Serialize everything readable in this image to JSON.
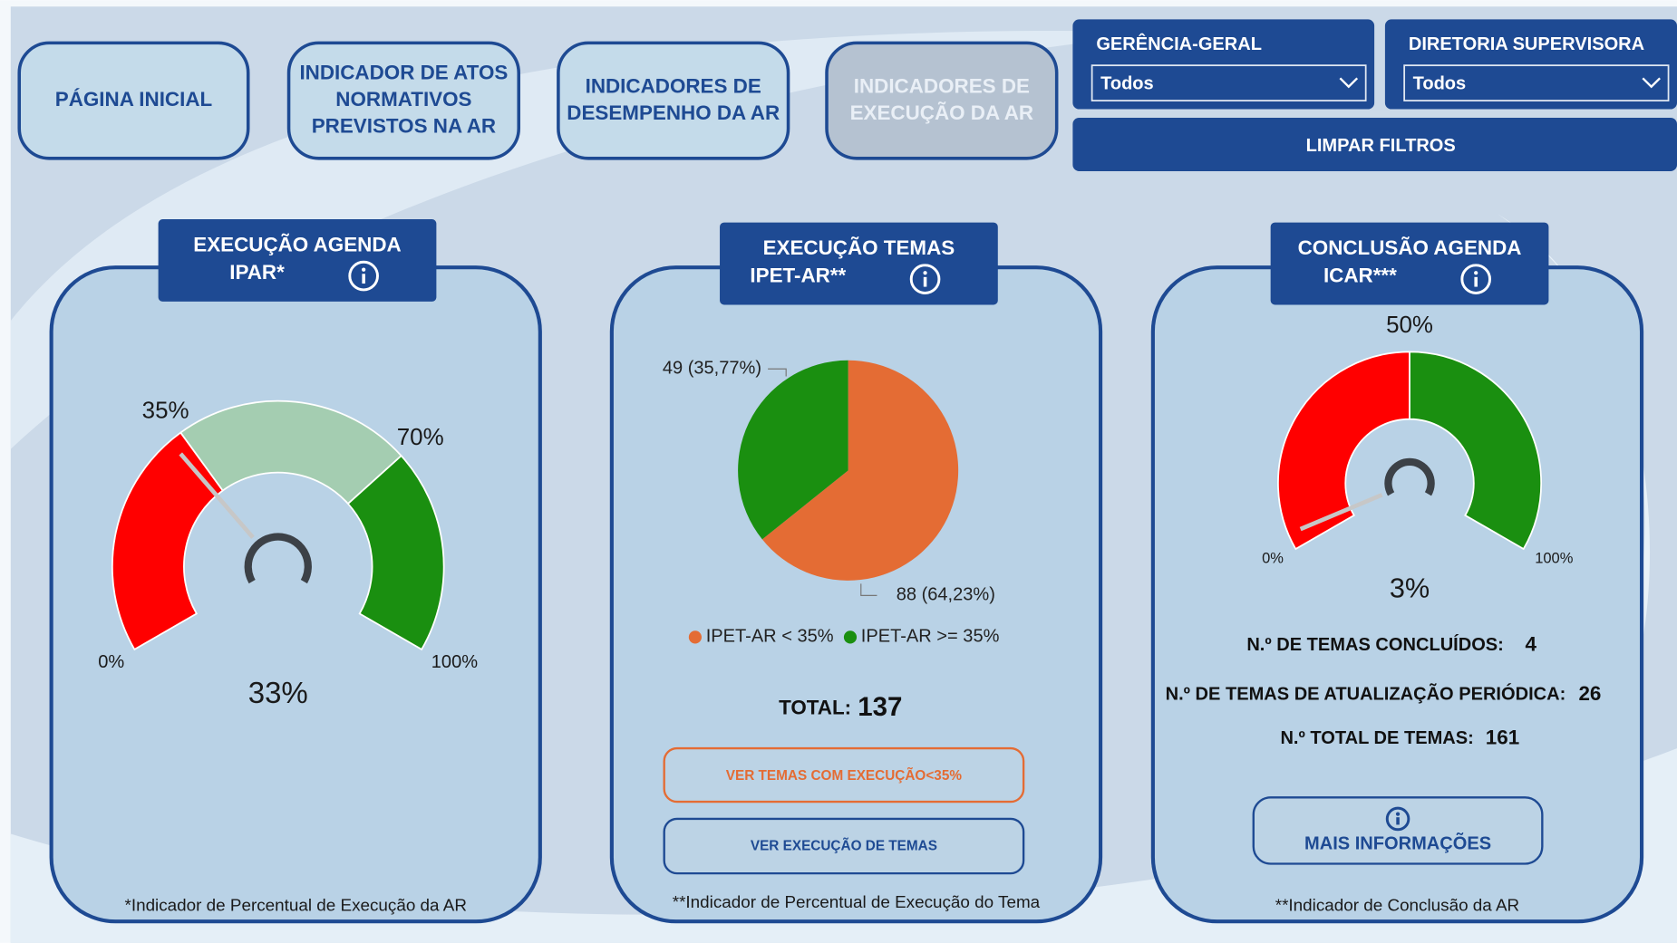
{
  "nav": [
    {
      "lines": [
        "PÁGINA INICIAL"
      ]
    },
    {
      "lines": [
        "INDICADOR DE ATOS",
        "NORMATIVOS",
        "PREVISTOS NA AR"
      ]
    },
    {
      "lines": [
        "INDICADORES DE",
        "DESEMPENHO DA AR"
      ]
    },
    {
      "lines": [
        "INDICADORES DE",
        "EXECUÇÃO DA AR"
      ]
    }
  ],
  "filters": [
    {
      "label": "GERÊNCIA-GERAL",
      "value": "Todos"
    },
    {
      "label": "DIRETORIA SUPERVISORA",
      "value": "Todos"
    }
  ],
  "clear_button": "LIMPAR FILTROS",
  "panels": [
    {
      "title_lines": [
        "EXECUÇÃO AGENDA",
        "IPAR*"
      ],
      "gauge": {
        "min": 0,
        "max": 100,
        "min_label": "0%",
        "max_label": "100%",
        "thresholds": [
          35,
          70
        ],
        "threshold_labels": [
          "35%",
          "70%"
        ],
        "colors": [
          "#ff0000",
          "#a4cdb1",
          "#1a8f10"
        ],
        "value": 33,
        "value_label": "33%"
      },
      "footnote": "*Indicador de Percentual de Execução da AR"
    },
    {
      "title_lines": [
        "EXECUÇÃO TEMAS",
        "IPET-AR**"
      ],
      "pie": {
        "names": [
          "IPET-AR < 35%",
          "IPET-AR >= 35%"
        ],
        "values": [
          88,
          49
        ],
        "value_labels": [
          "88 (64,23%)",
          "49 (35,77%)"
        ],
        "colors": [
          "#e46c34",
          "#1a8f10"
        ]
      },
      "total_label": "TOTAL:",
      "total": 137,
      "buttons": [
        "VER TEMAS COM EXECUÇÃO<35%",
        "VER EXECUÇÃO DE TEMAS"
      ],
      "footnote": "**Indicador de Percentual de Execução do Tema"
    },
    {
      "title_lines": [
        "CONCLUSÃO AGENDA",
        "ICAR***"
      ],
      "gauge": {
        "min": 0,
        "max": 100,
        "min_label": "0%",
        "max_label": "100%",
        "thresholds": [
          50
        ],
        "threshold_labels": [
          "50%"
        ],
        "colors": [
          "#ff0000",
          "#1a8f10"
        ],
        "value": 3,
        "value_label": "3%"
      },
      "stats": [
        {
          "label": "N.º DE TEMAS CONCLUÍDOS:",
          "value": 4
        },
        {
          "label": "N.º DE TEMAS  DE ATUALIZAÇÃO PERIÓDICA:",
          "value": 26
        },
        {
          "label": "N.º TOTAL DE TEMAS:",
          "value": 161
        }
      ],
      "button": "MAIS INFORMAÇÕES",
      "footnote": "**Indicador de Conclusão da AR"
    }
  ]
}
